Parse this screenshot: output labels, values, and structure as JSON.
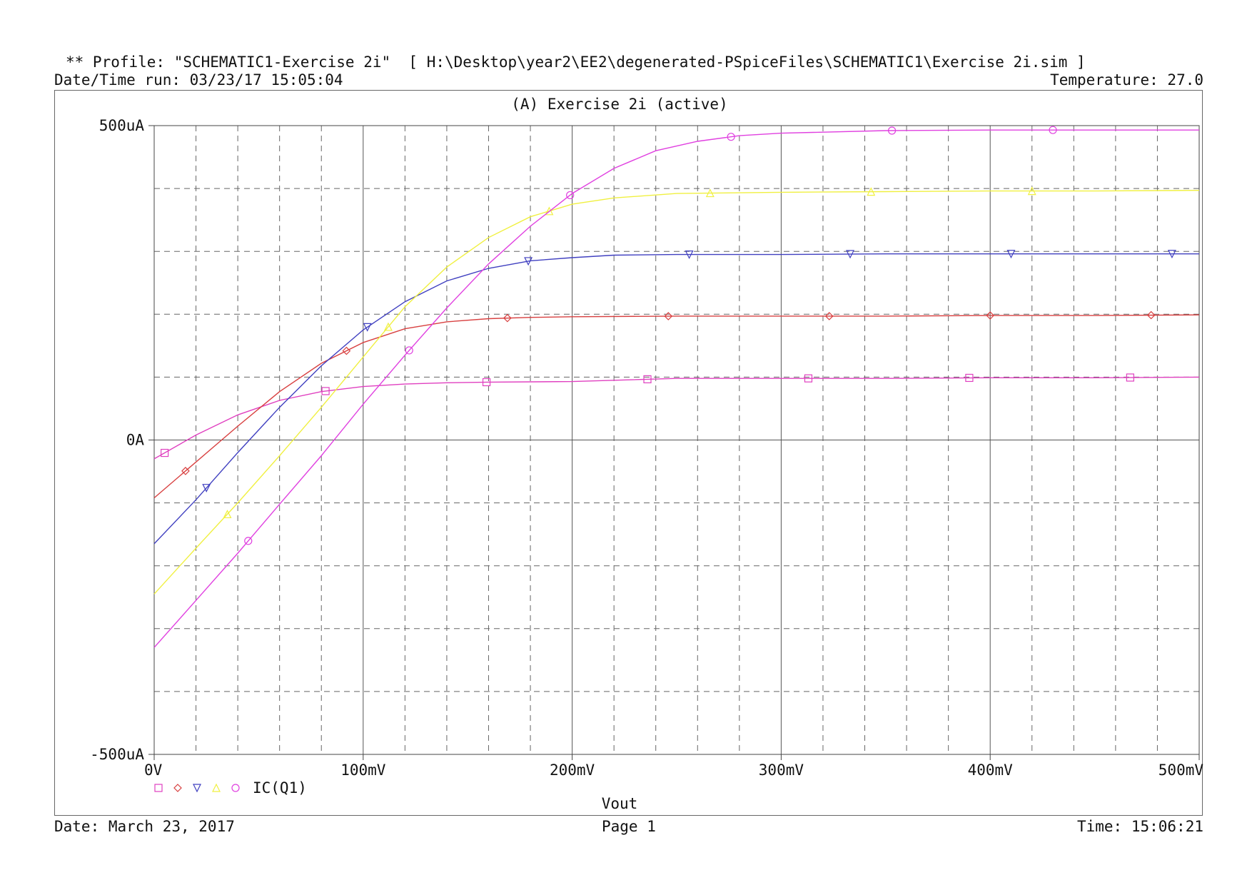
{
  "header": {
    "profile": "** Profile: \"SCHEMATIC1-Exercise 2i\"  [ H:\\Desktop\\year2\\EE2\\degenerated-PSpiceFiles\\SCHEMATIC1\\Exercise 2i.sim ]",
    "datetime_run": "Date/Time run: 03/23/17 15:05:04",
    "temperature": "Temperature: 27.0"
  },
  "footer": {
    "date": "Date: March 23, 2017",
    "page": "Page 1",
    "time": "Time: 15:06:21"
  },
  "colors": {
    "grid_major": "#555555",
    "grid_minor": "#666666",
    "series": [
      "#e040c0",
      "#d84040",
      "#4040c0",
      "#f0f040",
      "#e040e0"
    ]
  },
  "chart_data": {
    "type": "line",
    "title": "(A) Exercise 2i (active)",
    "xlabel": "Vout",
    "ylabel": "",
    "x_unit": "V",
    "y_unit": "uA",
    "xlim": [
      0,
      500
    ],
    "ylim": [
      -500,
      500
    ],
    "x_ticks": [
      {
        "value": 0,
        "label": "0V"
      },
      {
        "value": 100,
        "label": "100mV"
      },
      {
        "value": 200,
        "label": "200mV"
      },
      {
        "value": 300,
        "label": "300mV"
      },
      {
        "value": 400,
        "label": "400mV"
      },
      {
        "value": 500,
        "label": "500mV"
      }
    ],
    "y_ticks": [
      {
        "value": 500,
        "label": "500uA"
      },
      {
        "value": 0,
        "label": "0A"
      },
      {
        "value": -500,
        "label": "-500uA"
      }
    ],
    "grid": true,
    "legend": {
      "label": "IC(Q1)",
      "placement": "bottom-left",
      "markers": [
        "square",
        "diamond",
        "triangle-down",
        "triangle-up",
        "circle"
      ]
    },
    "series": [
      {
        "marker": "square",
        "color": "#e040c0",
        "x": [
          0,
          20,
          40,
          60,
          80,
          100,
          120,
          140,
          160,
          200,
          250,
          300,
          350,
          400,
          450,
          500
        ],
        "y": [
          -30,
          8,
          40,
          63,
          77,
          85,
          89,
          91,
          92,
          93,
          98,
          98,
          98,
          99,
          99,
          100
        ]
      },
      {
        "marker": "diamond",
        "color": "#d84040",
        "x": [
          0,
          20,
          40,
          60,
          80,
          100,
          120,
          140,
          160,
          180,
          200,
          250,
          300,
          350,
          400,
          450,
          500
        ],
        "y": [
          -92,
          -35,
          22,
          77,
          122,
          155,
          177,
          188,
          193,
          195,
          196,
          197,
          197,
          197,
          198,
          198,
          199
        ]
      },
      {
        "marker": "triangle-down",
        "color": "#4040c0",
        "x": [
          0,
          20,
          40,
          60,
          80,
          100,
          120,
          140,
          160,
          180,
          200,
          220,
          250,
          300,
          350,
          400,
          450,
          500
        ],
        "y": [
          -165,
          -95,
          -20,
          52,
          118,
          175,
          220,
          253,
          273,
          285,
          290,
          294,
          295,
          295,
          296,
          296,
          296,
          296
        ]
      },
      {
        "marker": "triangle-up",
        "color": "#f0f040",
        "x": [
          0,
          20,
          40,
          60,
          80,
          100,
          120,
          140,
          160,
          180,
          200,
          220,
          250,
          300,
          350,
          400,
          450,
          500
        ],
        "y": [
          -245,
          -172,
          -100,
          -25,
          52,
          132,
          212,
          275,
          322,
          355,
          375,
          385,
          392,
          394,
          395,
          396,
          396,
          397
        ]
      },
      {
        "marker": "circle",
        "color": "#e040e0",
        "x": [
          0,
          20,
          40,
          60,
          80,
          100,
          120,
          140,
          160,
          180,
          200,
          220,
          240,
          260,
          280,
          300,
          350,
          400,
          450,
          500
        ],
        "y": [
          -330,
          -255,
          -180,
          -102,
          -25,
          57,
          135,
          210,
          280,
          340,
          392,
          432,
          460,
          475,
          484,
          488,
          492,
          493,
          493,
          493
        ]
      }
    ]
  }
}
